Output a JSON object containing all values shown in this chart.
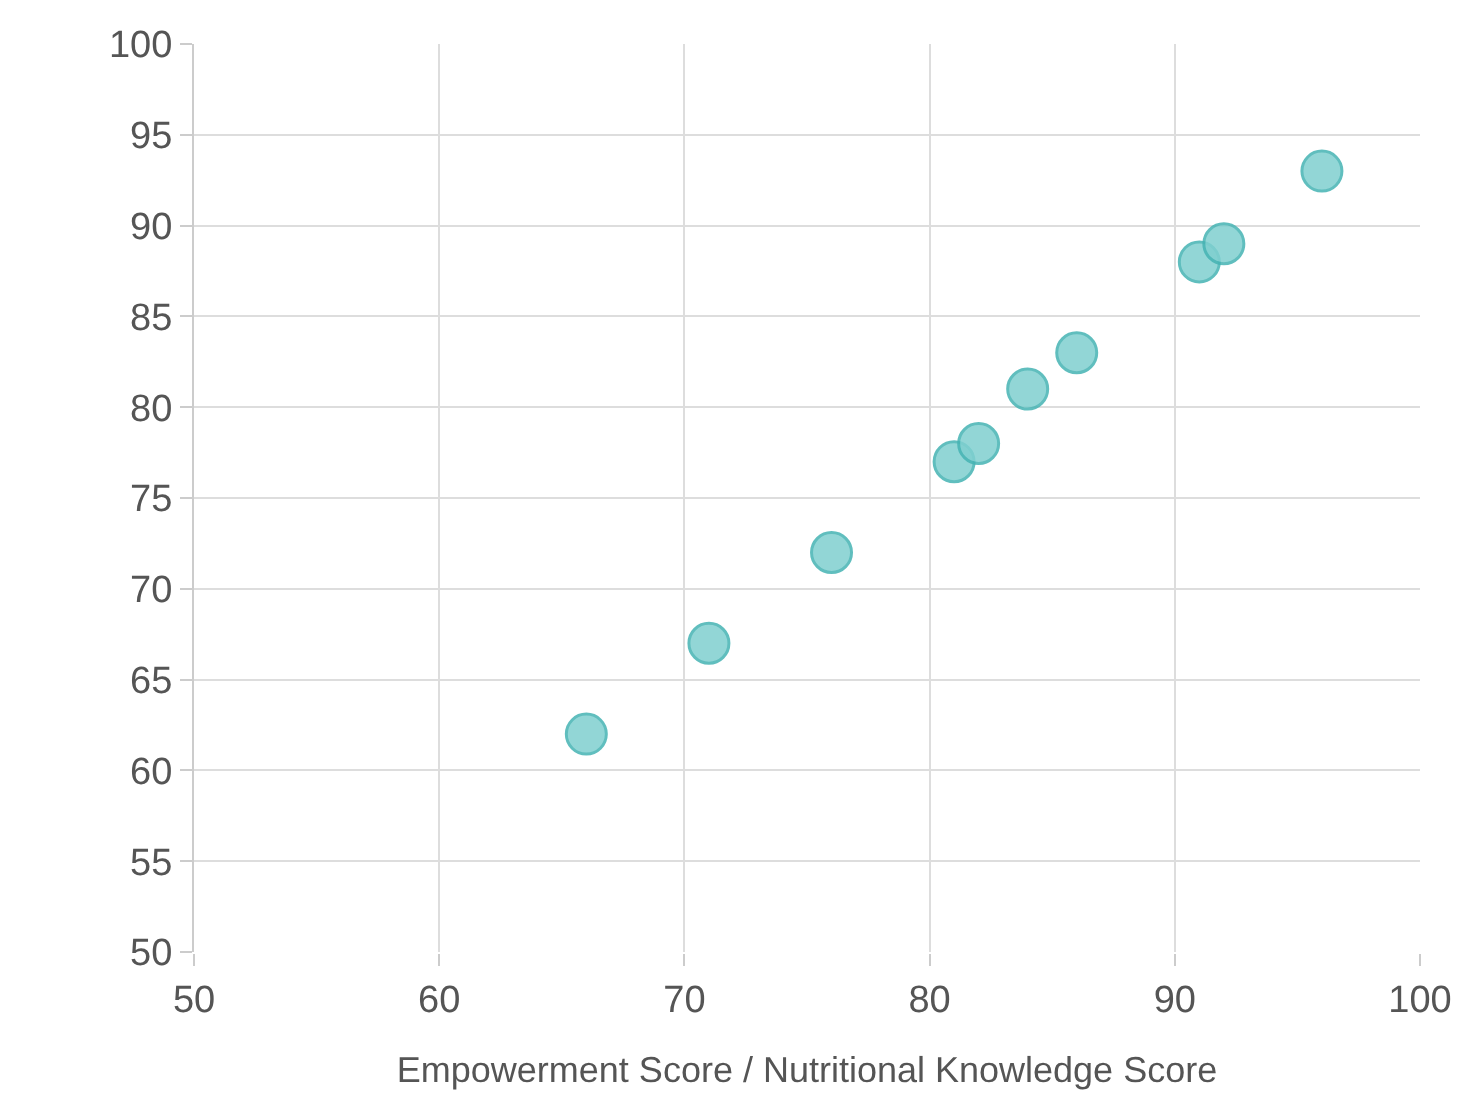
{
  "chart_data": {
    "type": "scatter",
    "xlabel": "Empowerment Score / Nutritional Knowledge Score",
    "x": [
      66,
      71,
      76,
      81,
      82,
      84,
      86,
      91,
      92,
      96
    ],
    "values": [
      62,
      67,
      72,
      77,
      78,
      81,
      83,
      88,
      89,
      93
    ],
    "color": "#80d0d0",
    "xlim": [
      50,
      100
    ],
    "xticks": [
      50,
      60,
      70,
      80,
      90,
      100
    ],
    "ylim": [
      50,
      100
    ],
    "yticks": [
      50,
      55,
      60,
      65,
      70,
      75,
      80,
      85,
      90,
      95,
      100
    ],
    "grid": true,
    "marker": "circle",
    "legend": false
  }
}
